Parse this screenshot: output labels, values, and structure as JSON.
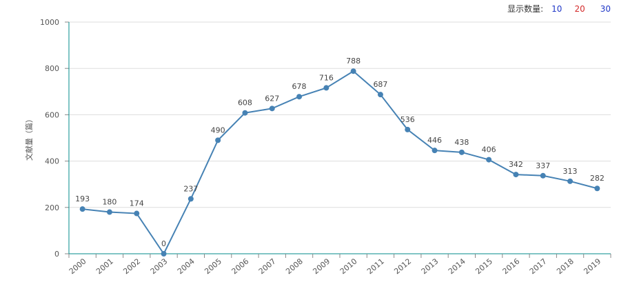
{
  "controls": {
    "label": "显示数量:",
    "options": [
      "10",
      "20",
      "30"
    ]
  },
  "colors": {
    "line": "#4682b4",
    "grid": "#dddddd",
    "axis": "#008b8b"
  },
  "chart_data": {
    "type": "line",
    "title": "",
    "xlabel": "",
    "ylabel": "文献量（篇）",
    "ylim": [
      0,
      1000
    ],
    "yticks": [
      0,
      200,
      400,
      600,
      800,
      1000
    ],
    "grid": true,
    "categories": [
      "2000",
      "2001",
      "2002",
      "2003",
      "2004",
      "2005",
      "2006",
      "2007",
      "2008",
      "2009",
      "2010",
      "2011",
      "2012",
      "2013",
      "2014",
      "2015",
      "2016",
      "2017",
      "2018",
      "2019"
    ],
    "series": [
      {
        "values": [
          193,
          180,
          174,
          0,
          237,
          490,
          608,
          627,
          678,
          716,
          788,
          687,
          536,
          446,
          438,
          406,
          342,
          337,
          313,
          282
        ]
      }
    ]
  }
}
